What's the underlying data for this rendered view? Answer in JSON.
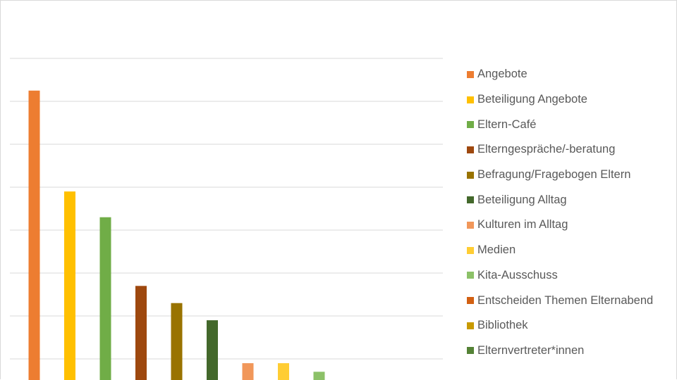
{
  "chart_data": {
    "type": "bar",
    "title": "",
    "xlabel": "",
    "ylabel": "",
    "ylim": [
      0,
      17
    ],
    "gridlines": true,
    "gridline_step": 2,
    "legend_position": "right",
    "categories": [
      "Angebote",
      "Beteiligung Angebote",
      "Eltern-Café",
      "Elterngespräche/-beratung",
      "Befragung/Fragebogen Eltern",
      "Beteiligung Alltag",
      "Kulturen im Alltag",
      "Medien",
      "Kita-Ausschuss",
      "Entscheiden Themen Elternabend",
      "Bibliothek",
      "Elternvertreter*innen"
    ],
    "values": [
      14.5,
      9.8,
      8.6,
      5.4,
      4.6,
      3.8,
      1.8,
      1.8,
      1.4,
      0.6,
      0.2,
      0.2
    ],
    "colors": [
      "#ED7D31",
      "#FFC000",
      "#70AD47",
      "#9E480E",
      "#997300",
      "#43682B",
      "#F1975A",
      "#FFCD33",
      "#8CC168",
      "#D26012",
      "#C89A00",
      "#548235"
    ]
  }
}
